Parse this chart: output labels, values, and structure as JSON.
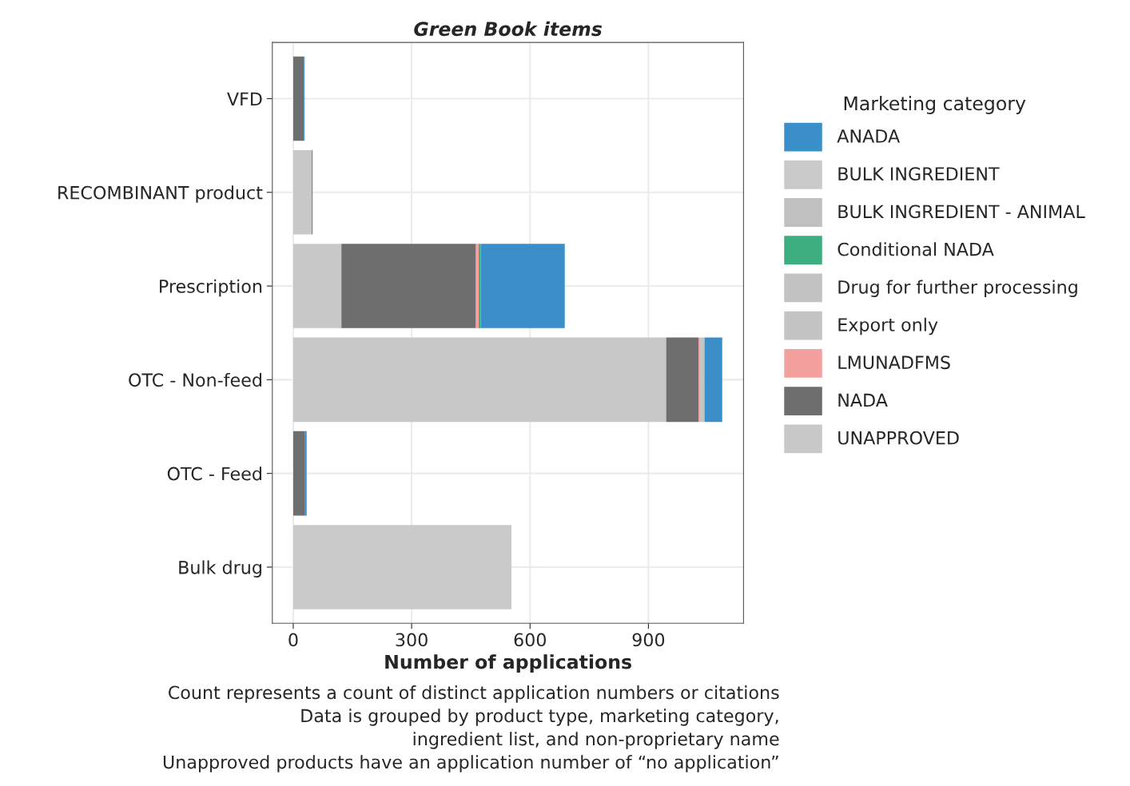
{
  "chart_data": {
    "type": "bar",
    "orientation": "horizontal",
    "stacked": true,
    "title": "Green Book items",
    "xlabel": "Number of applications",
    "legend_title": "Marketing category",
    "legend": "right",
    "grid": true,
    "categories": [
      "VFD",
      "RECOMBINANT product",
      "Prescription",
      "OTC - Non-feed",
      "OTC - Feed",
      "Bulk drug"
    ],
    "xlim": [
      -53,
      1141
    ],
    "xticks": [
      0,
      300,
      600,
      900
    ],
    "series": [
      {
        "name": "UNAPPROVED",
        "color": "#c8c8c8",
        "values": [
          null,
          47,
          122,
          945,
          null,
          null
        ]
      },
      {
        "name": "NADA",
        "color": "#6e6e6e",
        "values": [
          27,
          2,
          341,
          82,
          30,
          null
        ]
      },
      {
        "name": "LMUNADFMS",
        "color": "#f4a09e",
        "values": [
          null,
          null,
          7,
          4,
          null,
          null
        ]
      },
      {
        "name": "Export only",
        "color": "#c4c4c4",
        "values": [
          null,
          null,
          null,
          11,
          null,
          null
        ]
      },
      {
        "name": "Drug for further processing",
        "color": "#c2c2c2",
        "values": [
          null,
          null,
          null,
          null,
          null,
          null
        ]
      },
      {
        "name": "Conditional NADA",
        "color": "#3cae80",
        "values": [
          null,
          null,
          5,
          null,
          null,
          null
        ]
      },
      {
        "name": "BULK INGREDIENT - ANIMAL",
        "color": "#c0c0c0",
        "values": [
          null,
          null,
          null,
          null,
          null,
          null
        ]
      },
      {
        "name": "BULK INGREDIENT",
        "color": "#cacaca",
        "values": [
          null,
          null,
          null,
          null,
          null,
          553
        ]
      },
      {
        "name": "ANADA",
        "color": "#3a8fc8",
        "values": [
          2,
          null,
          213,
          45,
          4,
          null
        ]
      }
    ],
    "annotations": [
      "Count represents a count of distinct application numbers or citations",
      "Data is grouped by product type, marketing category,",
      "ingredient list, and non-proprietary name",
      "Unapproved products have an application number of “no application”"
    ]
  }
}
